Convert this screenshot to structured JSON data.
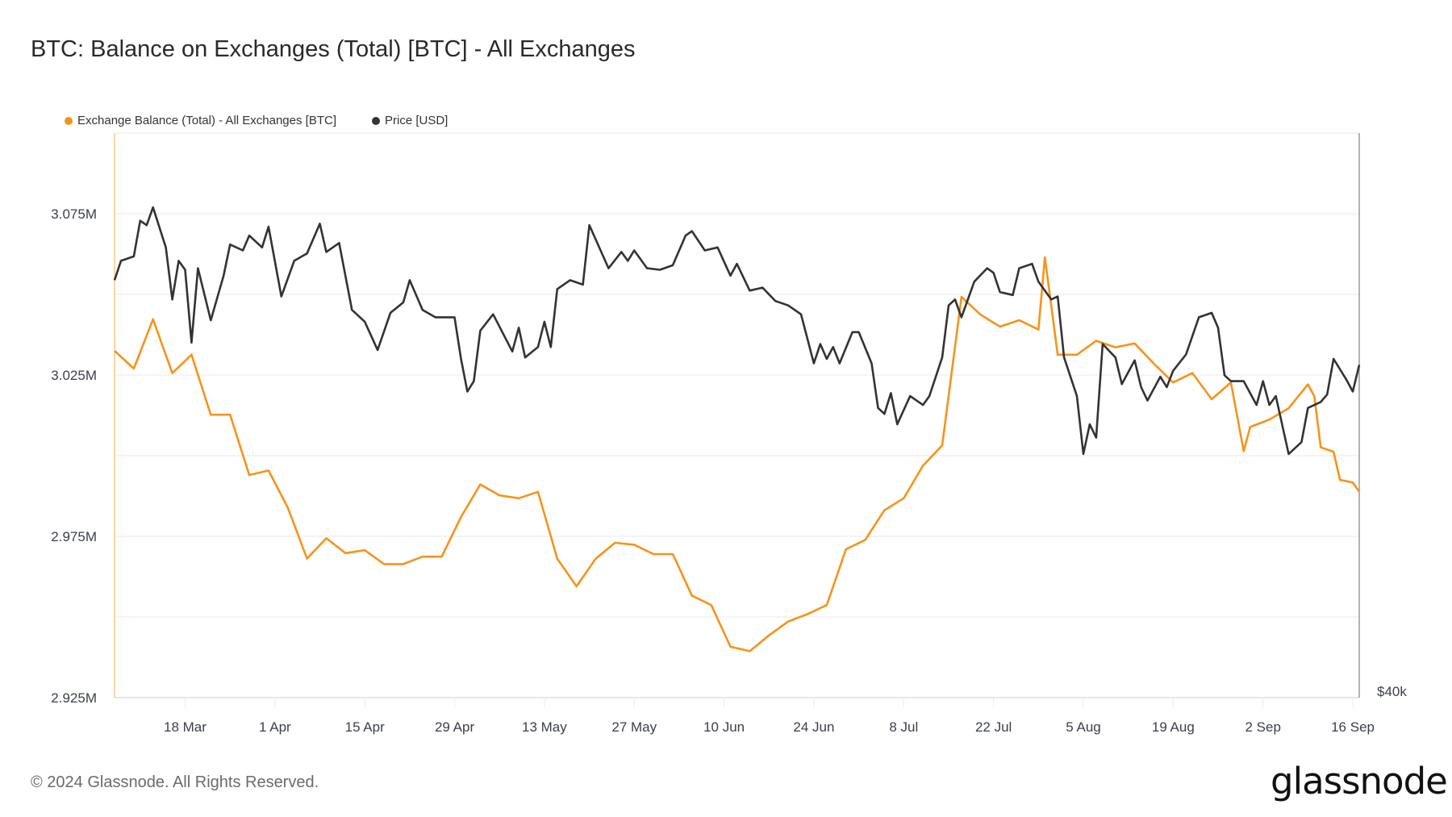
{
  "title": "BTC: Balance on Exchanges (Total) [BTC] - All Exchanges",
  "footer": "© 2024 Glassnode. All Rights Reserved.",
  "logo": "glassnode",
  "chart_data": {
    "type": "line",
    "title": "BTC: Balance on Exchanges (Total) [BTC] - All Exchanges",
    "legend_position": "top-left",
    "grid": true,
    "x_range": [
      "2024-03-07",
      "2024-09-17"
    ],
    "x_ticks": [
      {
        "date": "2024-03-18",
        "label": "18 Mar"
      },
      {
        "date": "2024-04-01",
        "label": "1 Apr"
      },
      {
        "date": "2024-04-15",
        "label": "15 Apr"
      },
      {
        "date": "2024-04-29",
        "label": "29 Apr"
      },
      {
        "date": "2024-05-13",
        "label": "13 May"
      },
      {
        "date": "2024-05-27",
        "label": "27 May"
      },
      {
        "date": "2024-06-10",
        "label": "10 Jun"
      },
      {
        "date": "2024-06-24",
        "label": "24 Jun"
      },
      {
        "date": "2024-07-08",
        "label": "8 Jul"
      },
      {
        "date": "2024-07-22",
        "label": "22 Jul"
      },
      {
        "date": "2024-08-05",
        "label": "5 Aug"
      },
      {
        "date": "2024-08-19",
        "label": "19 Aug"
      },
      {
        "date": "2024-09-02",
        "label": "2 Sep"
      },
      {
        "date": "2024-09-16",
        "label": "16 Sep"
      }
    ],
    "y_left": {
      "unit": "M BTC",
      "range": [
        2.925,
        3.1
      ],
      "grid_step": 0.025,
      "ticks": [
        {
          "value": 2.925,
          "label": "2.925M"
        },
        {
          "value": 2.975,
          "label": "2.975M"
        },
        {
          "value": 3.025,
          "label": "3.025M"
        },
        {
          "value": 3.075,
          "label": "3.075M"
        }
      ]
    },
    "y_right": {
      "unit": "USD",
      "range": [
        40000,
        78000
      ],
      "ticks": [
        {
          "value": 40000,
          "label": "$40k"
        }
      ]
    },
    "series": [
      {
        "name": "Exchange Balance (Total) - All Exchanges [BTC]",
        "color": "#f7931a",
        "axis": "left",
        "points": [
          [
            "2024-03-07",
            3.0325
          ],
          [
            "2024-03-10",
            3.027
          ],
          [
            "2024-03-13",
            3.0423
          ],
          [
            "2024-03-16",
            3.0256
          ],
          [
            "2024-03-19",
            3.0313
          ],
          [
            "2024-03-22",
            3.0127
          ],
          [
            "2024-03-25",
            3.0127
          ],
          [
            "2024-03-28",
            2.994
          ],
          [
            "2024-03-31",
            2.9954
          ],
          [
            "2024-04-03",
            2.9839
          ],
          [
            "2024-04-06",
            2.9681
          ],
          [
            "2024-04-09",
            2.9744
          ],
          [
            "2024-04-12",
            2.9698
          ],
          [
            "2024-04-15",
            2.9707
          ],
          [
            "2024-04-18",
            2.9664
          ],
          [
            "2024-04-21",
            2.9664
          ],
          [
            "2024-04-24",
            2.9687
          ],
          [
            "2024-04-27",
            2.9687
          ],
          [
            "2024-04-30",
            2.981
          ],
          [
            "2024-05-03",
            2.9911
          ],
          [
            "2024-05-06",
            2.9877
          ],
          [
            "2024-05-09",
            2.9868
          ],
          [
            "2024-05-12",
            2.9888
          ],
          [
            "2024-05-15",
            2.9681
          ],
          [
            "2024-05-18",
            2.9595
          ],
          [
            "2024-05-21",
            2.9681
          ],
          [
            "2024-05-24",
            2.973
          ],
          [
            "2024-05-27",
            2.9724
          ],
          [
            "2024-05-30",
            2.9695
          ],
          [
            "2024-06-02",
            2.9695
          ],
          [
            "2024-06-05",
            2.9566
          ],
          [
            "2024-06-08",
            2.9537
          ],
          [
            "2024-06-11",
            2.9408
          ],
          [
            "2024-06-14",
            2.9394
          ],
          [
            "2024-06-17",
            2.9443
          ],
          [
            "2024-06-20",
            2.9486
          ],
          [
            "2024-06-23",
            2.9509
          ],
          [
            "2024-06-26",
            2.9537
          ],
          [
            "2024-06-29",
            2.971
          ],
          [
            "2024-07-02",
            2.9739
          ],
          [
            "2024-07-05",
            2.9831
          ],
          [
            "2024-07-08",
            2.9868
          ],
          [
            "2024-07-11",
            2.9969
          ],
          [
            "2024-07-14",
            3.0032
          ],
          [
            "2024-07-17",
            3.0492
          ],
          [
            "2024-07-20",
            3.0437
          ],
          [
            "2024-07-23",
            3.04
          ],
          [
            "2024-07-26",
            3.042
          ],
          [
            "2024-07-29",
            3.0391
          ],
          [
            "2024-07-30",
            3.0615
          ],
          [
            "2024-08-01",
            3.0313
          ],
          [
            "2024-08-04",
            3.0313
          ],
          [
            "2024-08-07",
            3.0356
          ],
          [
            "2024-08-10",
            3.0336
          ],
          [
            "2024-08-13",
            3.0348
          ],
          [
            "2024-08-16",
            3.0285
          ],
          [
            "2024-08-19",
            3.0227
          ],
          [
            "2024-08-22",
            3.0256
          ],
          [
            "2024-08-25",
            3.0175
          ],
          [
            "2024-08-28",
            3.0227
          ],
          [
            "2024-08-30",
            3.0014
          ],
          [
            "2024-08-31",
            3.0089
          ],
          [
            "2024-09-03",
            3.0112
          ],
          [
            "2024-09-06",
            3.0147
          ],
          [
            "2024-09-09",
            3.0221
          ],
          [
            "2024-09-10",
            3.0184
          ],
          [
            "2024-09-11",
            3.0026
          ],
          [
            "2024-09-13",
            3.0012
          ],
          [
            "2024-09-14",
            2.9925
          ],
          [
            "2024-09-16",
            2.9917
          ],
          [
            "2024-09-17",
            2.9888
          ]
        ]
      },
      {
        "name": "Price [USD]",
        "color": "#333333",
        "axis": "right",
        "points": [
          [
            "2024-03-07",
            68100
          ],
          [
            "2024-03-08",
            69400
          ],
          [
            "2024-03-10",
            69700
          ],
          [
            "2024-03-11",
            72100
          ],
          [
            "2024-03-12",
            71800
          ],
          [
            "2024-03-13",
            73000
          ],
          [
            "2024-03-15",
            70300
          ],
          [
            "2024-03-16",
            66800
          ],
          [
            "2024-03-17",
            69400
          ],
          [
            "2024-03-18",
            68800
          ],
          [
            "2024-03-19",
            63900
          ],
          [
            "2024-03-20",
            68900
          ],
          [
            "2024-03-22",
            65400
          ],
          [
            "2024-03-24",
            68400
          ],
          [
            "2024-03-25",
            70500
          ],
          [
            "2024-03-27",
            70100
          ],
          [
            "2024-03-28",
            71100
          ],
          [
            "2024-03-30",
            70300
          ],
          [
            "2024-03-31",
            71700
          ],
          [
            "2024-04-02",
            67000
          ],
          [
            "2024-04-04",
            69400
          ],
          [
            "2024-04-06",
            69900
          ],
          [
            "2024-04-08",
            71900
          ],
          [
            "2024-04-09",
            70000
          ],
          [
            "2024-04-11",
            70600
          ],
          [
            "2024-04-13",
            66100
          ],
          [
            "2024-04-15",
            65300
          ],
          [
            "2024-04-17",
            63400
          ],
          [
            "2024-04-19",
            65900
          ],
          [
            "2024-04-21",
            66600
          ],
          [
            "2024-04-22",
            68100
          ],
          [
            "2024-04-24",
            66100
          ],
          [
            "2024-04-26",
            65600
          ],
          [
            "2024-04-29",
            65600
          ],
          [
            "2024-04-30",
            62800
          ],
          [
            "2024-05-01",
            60600
          ],
          [
            "2024-05-02",
            61300
          ],
          [
            "2024-05-03",
            64700
          ],
          [
            "2024-05-05",
            65800
          ],
          [
            "2024-05-08",
            63300
          ],
          [
            "2024-05-09",
            64900
          ],
          [
            "2024-05-10",
            62900
          ],
          [
            "2024-05-12",
            63600
          ],
          [
            "2024-05-13",
            65300
          ],
          [
            "2024-05-14",
            63600
          ],
          [
            "2024-05-15",
            67500
          ],
          [
            "2024-05-17",
            68100
          ],
          [
            "2024-05-19",
            67800
          ],
          [
            "2024-05-20",
            71800
          ],
          [
            "2024-05-23",
            68900
          ],
          [
            "2024-05-25",
            70000
          ],
          [
            "2024-05-26",
            69400
          ],
          [
            "2024-05-27",
            70100
          ],
          [
            "2024-05-29",
            68900
          ],
          [
            "2024-05-31",
            68800
          ],
          [
            "2024-06-02",
            69100
          ],
          [
            "2024-06-04",
            71100
          ],
          [
            "2024-06-05",
            71400
          ],
          [
            "2024-06-07",
            70100
          ],
          [
            "2024-06-09",
            70300
          ],
          [
            "2024-06-11",
            68400
          ],
          [
            "2024-06-12",
            69200
          ],
          [
            "2024-06-14",
            67400
          ],
          [
            "2024-06-16",
            67600
          ],
          [
            "2024-06-18",
            66700
          ],
          [
            "2024-06-20",
            66400
          ],
          [
            "2024-06-22",
            65800
          ],
          [
            "2024-06-24",
            62500
          ],
          [
            "2024-06-25",
            63800
          ],
          [
            "2024-06-26",
            62800
          ],
          [
            "2024-06-27",
            63600
          ],
          [
            "2024-06-28",
            62500
          ],
          [
            "2024-06-30",
            64600
          ],
          [
            "2024-07-01",
            64600
          ],
          [
            "2024-07-03",
            62500
          ],
          [
            "2024-07-04",
            59500
          ],
          [
            "2024-07-05",
            59100
          ],
          [
            "2024-07-06",
            60500
          ],
          [
            "2024-07-07",
            58400
          ],
          [
            "2024-07-09",
            60300
          ],
          [
            "2024-07-11",
            59700
          ],
          [
            "2024-07-12",
            60300
          ],
          [
            "2024-07-14",
            62900
          ],
          [
            "2024-07-15",
            66400
          ],
          [
            "2024-07-16",
            66800
          ],
          [
            "2024-07-17",
            65600
          ],
          [
            "2024-07-19",
            68000
          ],
          [
            "2024-07-21",
            68900
          ],
          [
            "2024-07-22",
            68600
          ],
          [
            "2024-07-23",
            67300
          ],
          [
            "2024-07-25",
            67100
          ],
          [
            "2024-07-26",
            68900
          ],
          [
            "2024-07-28",
            69200
          ],
          [
            "2024-07-29",
            68000
          ],
          [
            "2024-07-31",
            66800
          ],
          [
            "2024-08-01",
            67000
          ],
          [
            "2024-08-02",
            62900
          ],
          [
            "2024-08-04",
            60300
          ],
          [
            "2024-08-05",
            56400
          ],
          [
            "2024-08-06",
            58400
          ],
          [
            "2024-08-07",
            57500
          ],
          [
            "2024-08-08",
            63800
          ],
          [
            "2024-08-10",
            62900
          ],
          [
            "2024-08-11",
            61100
          ],
          [
            "2024-08-13",
            62700
          ],
          [
            "2024-08-14",
            60900
          ],
          [
            "2024-08-15",
            60000
          ],
          [
            "2024-08-17",
            61600
          ],
          [
            "2024-08-18",
            60900
          ],
          [
            "2024-08-19",
            62000
          ],
          [
            "2024-08-21",
            63100
          ],
          [
            "2024-08-23",
            65600
          ],
          [
            "2024-08-25",
            65900
          ],
          [
            "2024-08-26",
            64900
          ],
          [
            "2024-08-27",
            61700
          ],
          [
            "2024-08-28",
            61300
          ],
          [
            "2024-08-30",
            61300
          ],
          [
            "2024-09-01",
            59700
          ],
          [
            "2024-09-02",
            61300
          ],
          [
            "2024-09-03",
            59700
          ],
          [
            "2024-09-04",
            60300
          ],
          [
            "2024-09-06",
            56400
          ],
          [
            "2024-09-08",
            57200
          ],
          [
            "2024-09-09",
            59500
          ],
          [
            "2024-09-11",
            59900
          ],
          [
            "2024-09-12",
            60400
          ],
          [
            "2024-09-13",
            62800
          ],
          [
            "2024-09-15",
            61400
          ],
          [
            "2024-09-16",
            60600
          ],
          [
            "2024-09-17",
            62400
          ]
        ]
      }
    ]
  }
}
